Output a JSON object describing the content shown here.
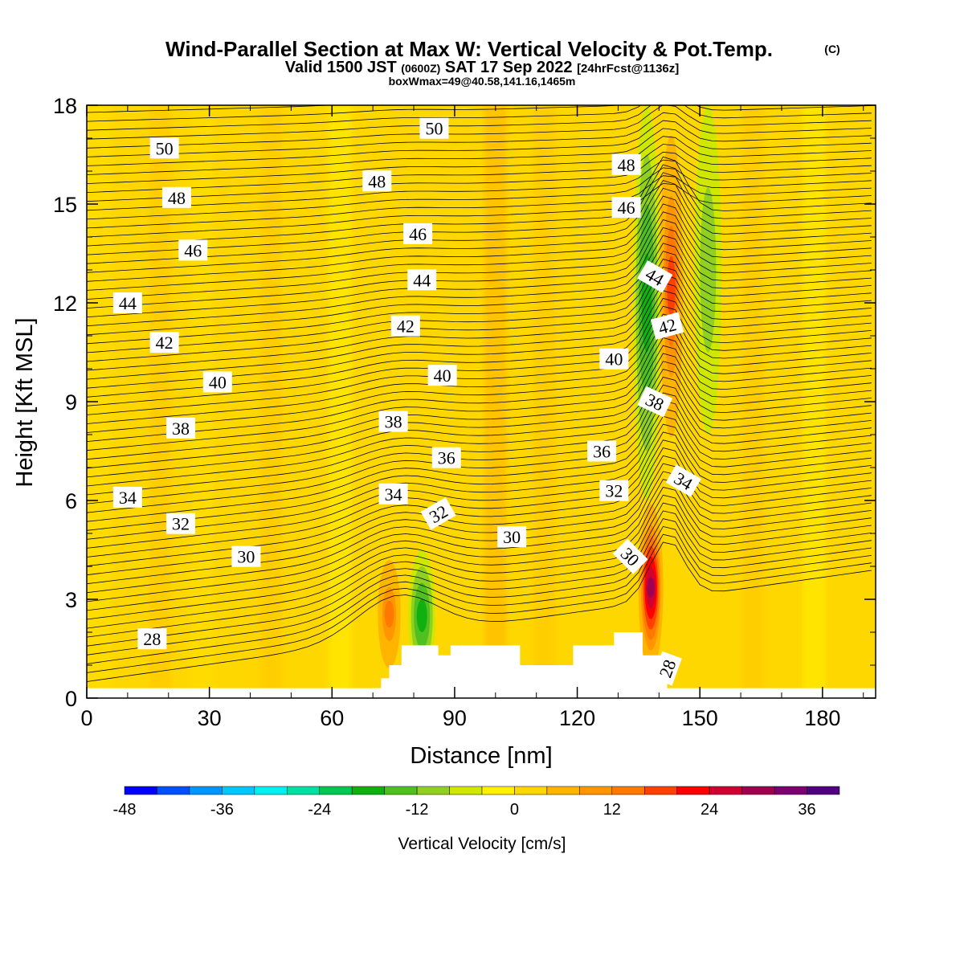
{
  "chart_data": {
    "type": "heatmap",
    "title": "Wind-Parallel Section at Max W: Vertical Velocity & Pot.Temp.",
    "title_mark": "(C)",
    "subtitle": {
      "prefix": "Valid 1500 JST",
      "utc": "(0600Z)",
      "date": "SAT 17 Sep 2022",
      "forecast": "[24hrFcst@1136z]"
    },
    "subsubtitle": "boxWmax=49@40.58,141.16,1465m",
    "xlabel": "Distance [nm]",
    "ylabel": "Height [Kft MSL]",
    "xlim": [
      0,
      193
    ],
    "ylim": [
      0,
      18
    ],
    "x_ticks": [
      "0",
      "30",
      "60",
      "90",
      "120",
      "150",
      "180"
    ],
    "y_ticks": [
      "0",
      "3",
      "6",
      "9",
      "12",
      "15",
      "18"
    ],
    "colorbar": {
      "label": "Vertical Velocity [cm/s]",
      "tick_labels": [
        "-48",
        "-36",
        "-24",
        "-12",
        "0",
        "12",
        "24",
        "36"
      ],
      "colors": [
        "#0000ff",
        "#0050ff",
        "#0096ff",
        "#00c8ff",
        "#00f0f0",
        "#00e0a0",
        "#00c850",
        "#10b010",
        "#50c020",
        "#90d020",
        "#d0e800",
        "#fff000",
        "#ffd700",
        "#ffb400",
        "#ff9600",
        "#ff7800",
        "#ff4000",
        "#ff0000",
        "#d00030",
        "#a00050",
        "#7d0070",
        "#500080"
      ]
    },
    "terrain": [
      [
        70,
        0.3
      ],
      [
        72,
        0.6
      ],
      [
        74,
        1.0
      ],
      [
        77,
        1.6
      ],
      [
        84,
        1.6
      ],
      [
        86,
        1.3
      ],
      [
        89,
        1.6
      ],
      [
        103,
        1.6
      ],
      [
        106,
        1.0
      ],
      [
        116,
        1.0
      ],
      [
        119,
        1.6
      ],
      [
        129,
        2.0
      ],
      [
        133,
        2.0
      ],
      [
        136,
        1.3
      ],
      [
        139,
        1.3
      ]
    ],
    "vertical_velocity_features": [
      {
        "x": 74,
        "y_from": 0.5,
        "y_to": 4.6,
        "w": 20
      },
      {
        "x": 82,
        "y_from": 0.5,
        "y_to": 4.5,
        "w": -14
      },
      {
        "x": 138,
        "y_from": 0.5,
        "y_to": 6.2,
        "w": 36
      },
      {
        "x": 143,
        "y_from": 7,
        "y_to": 18,
        "w": 22
      },
      {
        "x": 137,
        "y_from": 6,
        "y_to": 18,
        "w": -14
      },
      {
        "x": 152,
        "y_from": 8,
        "y_to": 18,
        "w": -8
      }
    ],
    "theta_contours": {
      "levels": [
        28,
        30,
        32,
        34,
        36,
        38,
        40,
        42,
        44,
        46,
        48,
        50
      ],
      "labels": [
        {
          "text": "28",
          "x": 16,
          "y": 1.8,
          "angle": 0
        },
        {
          "text": "28",
          "x": 142,
          "y": 0.9,
          "angle": -70
        },
        {
          "text": "30",
          "x": 39,
          "y": 4.3,
          "angle": 0
        },
        {
          "text": "30",
          "x": 104,
          "y": 4.9,
          "angle": 0
        },
        {
          "text": "30",
          "x": 133,
          "y": 4.3,
          "angle": 45
        },
        {
          "text": "32",
          "x": 23,
          "y": 5.3,
          "angle": 0
        },
        {
          "text": "32",
          "x": 86,
          "y": 5.6,
          "angle": -30
        },
        {
          "text": "32",
          "x": 129,
          "y": 6.3,
          "angle": 0
        },
        {
          "text": "34",
          "x": 10,
          "y": 6.1,
          "angle": 0
        },
        {
          "text": "34",
          "x": 75,
          "y": 6.2,
          "angle": 0
        },
        {
          "text": "34",
          "x": 146,
          "y": 6.6,
          "angle": 30
        },
        {
          "text": "36",
          "x": 88,
          "y": 7.3,
          "angle": 0
        },
        {
          "text": "36",
          "x": 126,
          "y": 7.5,
          "angle": 0
        },
        {
          "text": "38",
          "x": 23,
          "y": 8.2,
          "angle": 0
        },
        {
          "text": "38",
          "x": 75,
          "y": 8.4,
          "angle": 0
        },
        {
          "text": "38",
          "x": 139,
          "y": 9.0,
          "angle": 25
        },
        {
          "text": "40",
          "x": 32,
          "y": 9.6,
          "angle": 0
        },
        {
          "text": "40",
          "x": 87,
          "y": 9.8,
          "angle": 0
        },
        {
          "text": "40",
          "x": 129,
          "y": 10.3,
          "angle": 0
        },
        {
          "text": "42",
          "x": 19,
          "y": 10.8,
          "angle": 0
        },
        {
          "text": "42",
          "x": 78,
          "y": 11.3,
          "angle": 0
        },
        {
          "text": "42",
          "x": 142,
          "y": 11.3,
          "angle": -15
        },
        {
          "text": "44",
          "x": 10,
          "y": 12.0,
          "angle": 0
        },
        {
          "text": "44",
          "x": 82,
          "y": 12.7,
          "angle": 0
        },
        {
          "text": "44",
          "x": 139,
          "y": 12.8,
          "angle": 30
        },
        {
          "text": "46",
          "x": 26,
          "y": 13.6,
          "angle": 0
        },
        {
          "text": "46",
          "x": 81,
          "y": 14.1,
          "angle": 0
        },
        {
          "text": "46",
          "x": 132,
          "y": 14.9,
          "angle": 0
        },
        {
          "text": "48",
          "x": 22,
          "y": 15.2,
          "angle": 0
        },
        {
          "text": "48",
          "x": 71,
          "y": 15.7,
          "angle": 0
        },
        {
          "text": "48",
          "x": 132,
          "y": 16.2,
          "angle": 0
        },
        {
          "text": "50",
          "x": 19,
          "y": 16.7,
          "angle": 0
        },
        {
          "text": "50",
          "x": 85,
          "y": 17.3,
          "angle": 0
        }
      ]
    }
  }
}
